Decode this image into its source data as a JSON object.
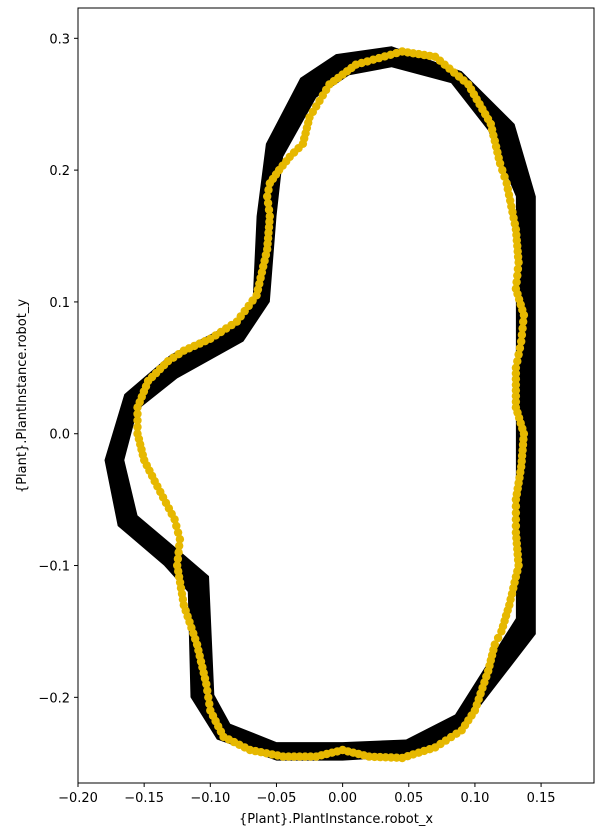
{
  "chart_data": {
    "type": "scatter",
    "xlabel": "{Plant}.PlantInstance.robot_x",
    "ylabel": "{Plant}.PlantInstance.robot_y",
    "xlim": [
      -0.2,
      0.19
    ],
    "ylim": [
      -0.265,
      0.323
    ],
    "x_ticks": [
      -0.2,
      -0.15,
      -0.1,
      -0.05,
      0.0,
      0.05,
      0.1,
      0.15
    ],
    "x_tick_labels": [
      "−0.20",
      "−0.15",
      "−0.10",
      "−0.05",
      "0.00",
      "0.05",
      "0.10",
      "0.15"
    ],
    "y_ticks": [
      -0.2,
      -0.1,
      0.0,
      0.1,
      0.2,
      0.3
    ],
    "y_tick_labels": [
      "−0.2",
      "−0.1",
      "0.0",
      "0.1",
      "0.2",
      "0.3"
    ],
    "grid": false,
    "track": {
      "color": "#000000",
      "outer": [
        [
          0.037,
          0.294
        ],
        [
          0.09,
          0.275
        ],
        [
          0.13,
          0.235
        ],
        [
          0.146,
          0.18
        ],
        [
          0.146,
          -0.152
        ],
        [
          0.09,
          -0.225
        ],
        [
          0.052,
          -0.245
        ],
        [
          0.0,
          -0.248
        ],
        [
          -0.05,
          -0.248
        ],
        [
          -0.095,
          -0.232
        ],
        [
          -0.115,
          -0.2
        ],
        [
          -0.117,
          -0.12
        ],
        [
          -0.135,
          -0.1
        ],
        [
          -0.17,
          -0.07
        ],
        [
          -0.18,
          -0.02
        ],
        [
          -0.165,
          0.03
        ],
        [
          -0.13,
          0.06
        ],
        [
          -0.085,
          0.083
        ],
        [
          -0.068,
          0.1
        ],
        [
          -0.065,
          0.165
        ],
        [
          -0.058,
          0.22
        ],
        [
          -0.032,
          0.27
        ],
        [
          -0.005,
          0.288
        ],
        [
          0.037,
          0.294
        ]
      ],
      "inner": [
        [
          0.037,
          0.278
        ],
        [
          0.082,
          0.266
        ],
        [
          0.11,
          0.23
        ],
        [
          0.131,
          0.18
        ],
        [
          0.131,
          -0.14
        ],
        [
          0.085,
          -0.213
        ],
        [
          0.048,
          -0.232
        ],
        [
          0.0,
          -0.234
        ],
        [
          -0.05,
          -0.234
        ],
        [
          -0.085,
          -0.22
        ],
        [
          -0.097,
          -0.198
        ],
        [
          -0.101,
          -0.108
        ],
        [
          -0.122,
          -0.09
        ],
        [
          -0.155,
          -0.062
        ],
        [
          -0.165,
          -0.02
        ],
        [
          -0.155,
          0.018
        ],
        [
          -0.125,
          0.042
        ],
        [
          -0.075,
          0.07
        ],
        [
          -0.055,
          0.1
        ],
        [
          -0.05,
          0.165
        ],
        [
          -0.045,
          0.21
        ],
        [
          -0.02,
          0.255
        ],
        [
          0.005,
          0.272
        ],
        [
          0.037,
          0.278
        ]
      ]
    },
    "series": [
      {
        "color": "#e6b800",
        "x": [
          0.045,
          0.07,
          0.095,
          0.112,
          0.119,
          0.124,
          0.131,
          0.133,
          0.131,
          0.137,
          0.135,
          0.131,
          0.131,
          0.137,
          0.135,
          0.131,
          0.131,
          0.133,
          0.126,
          0.12,
          0.115,
          0.11,
          0.1,
          0.09,
          0.07,
          0.045,
          0.02,
          0.0,
          -0.02,
          -0.045,
          -0.07,
          -0.09,
          -0.1,
          -0.103,
          -0.11,
          -0.12,
          -0.125,
          -0.123,
          -0.127,
          -0.14,
          -0.15,
          -0.155,
          -0.155,
          -0.147,
          -0.132,
          -0.12,
          -0.1,
          -0.08,
          -0.065,
          -0.057,
          -0.055,
          -0.057,
          -0.055,
          -0.048,
          -0.04,
          -0.03,
          -0.025,
          -0.01,
          0.01,
          0.045
        ],
        "y": [
          0.29,
          0.286,
          0.265,
          0.235,
          0.205,
          0.19,
          0.155,
          0.13,
          0.11,
          0.09,
          0.07,
          0.05,
          0.02,
          0.0,
          -0.025,
          -0.05,
          -0.075,
          -0.1,
          -0.13,
          -0.15,
          -0.16,
          -0.18,
          -0.21,
          -0.225,
          -0.238,
          -0.246,
          -0.245,
          -0.24,
          -0.245,
          -0.245,
          -0.24,
          -0.23,
          -0.21,
          -0.19,
          -0.16,
          -0.13,
          -0.1,
          -0.08,
          -0.065,
          -0.04,
          -0.02,
          0.0,
          0.02,
          0.04,
          0.055,
          0.063,
          0.072,
          0.085,
          0.105,
          0.14,
          0.165,
          0.18,
          0.19,
          0.2,
          0.21,
          0.22,
          0.24,
          0.265,
          0.28,
          0.29
        ]
      }
    ]
  }
}
